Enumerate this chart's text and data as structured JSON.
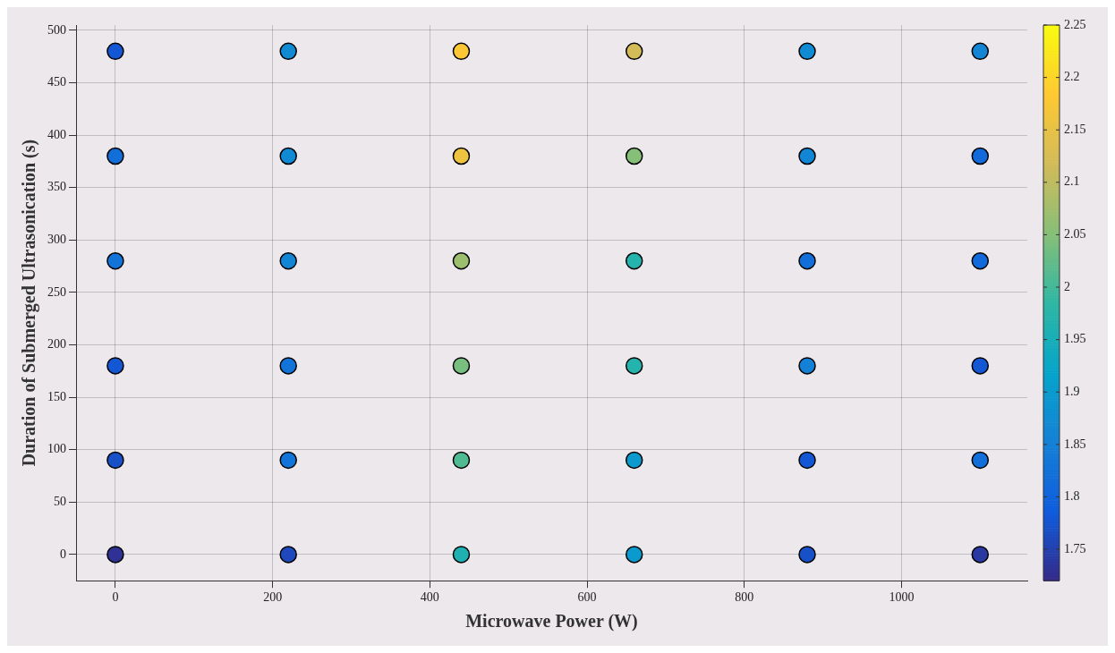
{
  "chart_data": {
    "type": "scatter",
    "xlabel": "Microwave Power (W)",
    "ylabel": "Duration of Submerged Ultrasonication (s)",
    "x": [
      0,
      220,
      440,
      660,
      880,
      1100,
      0,
      220,
      440,
      660,
      880,
      1100,
      0,
      220,
      440,
      660,
      880,
      1100,
      0,
      220,
      440,
      660,
      880,
      1100,
      0,
      220,
      440,
      660,
      880,
      1100,
      0,
      220,
      440,
      660,
      880,
      1100
    ],
    "values": [
      480,
      480,
      480,
      480,
      480,
      480,
      380,
      380,
      380,
      380,
      380,
      380,
      280,
      280,
      280,
      280,
      280,
      280,
      180,
      180,
      180,
      180,
      180,
      180,
      90,
      90,
      90,
      90,
      90,
      90,
      0,
      0,
      0,
      0,
      0,
      0
    ],
    "cvalues": [
      1.78,
      1.87,
      2.18,
      2.12,
      1.87,
      1.86,
      1.82,
      1.87,
      2.16,
      2.05,
      1.86,
      1.81,
      1.83,
      1.86,
      2.07,
      1.97,
      1.82,
      1.81,
      1.78,
      1.83,
      2.04,
      1.97,
      1.85,
      1.78,
      1.77,
      1.83,
      2.01,
      1.9,
      1.78,
      1.82,
      1.73,
      1.76,
      1.96,
      1.9,
      1.77,
      1.74
    ],
    "color": "#000000",
    "marker": "circle",
    "xlim": [
      -50,
      1160
    ],
    "xticks": [
      0,
      200,
      400,
      600,
      800,
      1000
    ],
    "ylim": [
      -25,
      505
    ],
    "yticks": [
      0,
      50,
      100,
      150,
      200,
      250,
      300,
      350,
      400,
      450,
      500
    ],
    "clim": [
      1.72,
      2.25
    ],
    "cticks": [
      1.75,
      1.8,
      1.85,
      1.9,
      1.95,
      2,
      2.05,
      2.1,
      2.15,
      2.2,
      2.25
    ],
    "grid": true,
    "legend": false
  }
}
